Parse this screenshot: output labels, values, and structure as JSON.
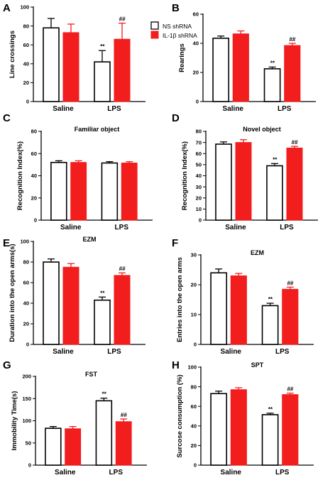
{
  "colors": {
    "ns_fill": "#ffffff",
    "il1b_fill": "#f21d1d",
    "axis": "#000000"
  },
  "legend": [
    {
      "label": "NS shRNA",
      "color": "#ffffff"
    },
    {
      "label": "IL-1β shRNA",
      "color": "#f21d1d"
    }
  ],
  "chart_data": [
    {
      "letter": "A",
      "type": "bar",
      "title": "",
      "ylabel": "Line crossings",
      "categories": [
        "Saline",
        "LPS"
      ],
      "ylim": [
        0,
        100
      ],
      "yticks": [
        0,
        20,
        40,
        60,
        80,
        100
      ],
      "series": [
        {
          "name": "NS shRNA",
          "values": [
            78,
            42
          ],
          "errors": [
            10,
            12
          ],
          "marks": [
            "",
            "**"
          ]
        },
        {
          "name": "IL-1β shRNA",
          "values": [
            73,
            66
          ],
          "errors": [
            9,
            17
          ],
          "marks": [
            "",
            "##"
          ]
        }
      ]
    },
    {
      "letter": "B",
      "type": "bar",
      "title": "",
      "ylabel": "Rearings",
      "categories": [
        "Saline",
        "LPS"
      ],
      "ylim": [
        0,
        60
      ],
      "yticks": [
        0,
        20,
        40,
        60
      ],
      "series": [
        {
          "name": "NS shRNA",
          "values": [
            43.5,
            22.5
          ],
          "errors": [
            1.5,
            1.2
          ],
          "marks": [
            "",
            "**"
          ]
        },
        {
          "name": "IL-1β shRNA",
          "values": [
            46.5,
            38.5
          ],
          "errors": [
            2,
            1.5
          ],
          "marks": [
            "",
            "##"
          ]
        }
      ]
    },
    {
      "letter": "C",
      "type": "bar",
      "title": "Familiar object",
      "ylabel": "Recognition Index(%)",
      "categories": [
        "Saline",
        "LPS"
      ],
      "ylim": [
        0,
        80
      ],
      "yticks": [
        0,
        20,
        40,
        60,
        80
      ],
      "series": [
        {
          "name": "NS shRNA",
          "values": [
            52,
            51.5
          ],
          "errors": [
            1.5,
            1.2
          ],
          "marks": [
            "",
            ""
          ]
        },
        {
          "name": "IL-1β shRNA",
          "values": [
            52,
            51.5
          ],
          "errors": [
            1.5,
            1.2
          ],
          "marks": [
            "",
            ""
          ]
        }
      ]
    },
    {
      "letter": "D",
      "type": "bar",
      "title": "Novel object",
      "ylabel": "Recognition Index(%)",
      "categories": [
        "Saline",
        "LPS"
      ],
      "ylim": [
        0,
        80
      ],
      "yticks": [
        0,
        10,
        20,
        30,
        40,
        50,
        60,
        70,
        80
      ],
      "series": [
        {
          "name": "NS shRNA",
          "values": [
            68.5,
            49
          ],
          "errors": [
            2,
            2
          ],
          "marks": [
            "",
            "**"
          ]
        },
        {
          "name": "IL-1β shRNA",
          "values": [
            70,
            65
          ],
          "errors": [
            2.5,
            1.5
          ],
          "marks": [
            "",
            "##"
          ]
        }
      ]
    },
    {
      "letter": "E",
      "type": "bar",
      "title": "EZM",
      "ylabel": "Duration into the open arms(s)",
      "categories": [
        "Saline",
        "LPS"
      ],
      "ylim": [
        0,
        100
      ],
      "yticks": [
        0,
        20,
        40,
        60,
        80,
        100
      ],
      "series": [
        {
          "name": "NS shRNA",
          "values": [
            80,
            43
          ],
          "errors": [
            3,
            3
          ],
          "marks": [
            "",
            "**"
          ]
        },
        {
          "name": "IL-1β shRNA",
          "values": [
            75,
            67
          ],
          "errors": [
            3.5,
            2.5
          ],
          "marks": [
            "",
            "##"
          ]
        }
      ]
    },
    {
      "letter": "F",
      "type": "bar",
      "title": "EZM",
      "ylabel": "Entries into the open arms",
      "categories": [
        "Saline",
        "LPS"
      ],
      "ylim": [
        0,
        30
      ],
      "yticks": [
        0,
        10,
        20,
        30
      ],
      "series": [
        {
          "name": "NS shRNA",
          "values": [
            24,
            13
          ],
          "errors": [
            1.3,
            0.8
          ],
          "marks": [
            "",
            "**"
          ]
        },
        {
          "name": "IL-1β shRNA",
          "values": [
            23,
            18.5
          ],
          "errors": [
            0.8,
            0.7
          ],
          "marks": [
            "",
            "##"
          ]
        }
      ]
    },
    {
      "letter": "G",
      "type": "bar",
      "title": "FST",
      "ylabel": "Immobility Time(s)",
      "categories": [
        "Saline",
        "LPS"
      ],
      "ylim": [
        0,
        200
      ],
      "yticks": [
        0,
        50,
        100,
        150,
        200
      ],
      "series": [
        {
          "name": "NS shRNA",
          "values": [
            83,
            145
          ],
          "errors": [
            4,
            6
          ],
          "marks": [
            "",
            "**"
          ]
        },
        {
          "name": "IL-1β shRNA",
          "values": [
            82,
            98
          ],
          "errors": [
            5,
            6
          ],
          "marks": [
            "",
            "##"
          ]
        }
      ]
    },
    {
      "letter": "H",
      "type": "bar",
      "title": "SPT",
      "ylabel": "Surcose consumption (%)",
      "categories": [
        "Saline",
        "LPS"
      ],
      "ylim": [
        0,
        100
      ],
      "yticks": [
        0,
        20,
        40,
        60,
        80,
        100
      ],
      "series": [
        {
          "name": "NS shRNA",
          "values": [
            73,
            51.5
          ],
          "errors": [
            2.5,
            1.5
          ],
          "marks": [
            "",
            "**"
          ]
        },
        {
          "name": "IL-1β shRNA",
          "values": [
            77,
            72
          ],
          "errors": [
            2,
            1.5
          ],
          "marks": [
            "",
            "##"
          ]
        }
      ]
    }
  ]
}
